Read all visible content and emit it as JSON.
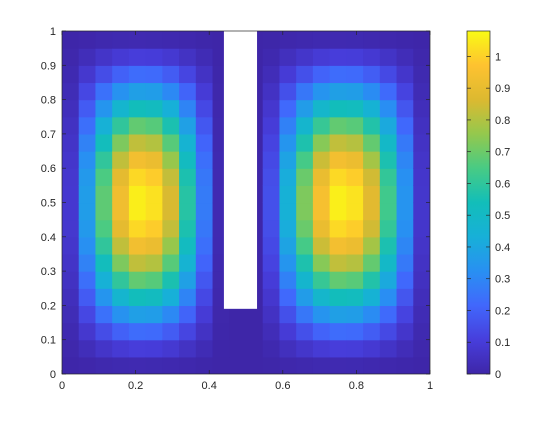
{
  "chart_data": {
    "type": "heatmap",
    "title": "",
    "xlabel": "",
    "ylabel": "",
    "xlim": [
      0,
      1
    ],
    "ylim": [
      0,
      1
    ],
    "x_ticks": [
      "0",
      "0.2",
      "0.4",
      "0.6",
      "0.8",
      "1"
    ],
    "x_tick_values": [
      0,
      0.2,
      0.4,
      0.6,
      0.8,
      1
    ],
    "y_ticks": [
      "0",
      "0.1",
      "0.2",
      "0.3",
      "0.4",
      "0.5",
      "0.6",
      "0.7",
      "0.8",
      "0.9",
      "1"
    ],
    "y_tick_values": [
      0,
      0.1,
      0.2,
      0.3,
      0.4,
      0.5,
      0.6,
      0.7,
      0.8,
      0.9,
      1
    ],
    "colormap": "parula",
    "colorbar": {
      "range": [
        0,
        1.08
      ],
      "ticks": [
        "0",
        "0.1",
        "0.2",
        "0.3",
        "0.4",
        "0.5",
        "0.6",
        "0.7",
        "0.8",
        "0.9",
        "1"
      ],
      "tick_values": [
        0,
        0.1,
        0.2,
        0.3,
        0.4,
        0.5,
        0.6,
        0.7,
        0.8,
        0.9,
        1
      ]
    },
    "field": {
      "grid_nx": 22,
      "grid_ny": 20,
      "peak_value": 1.07,
      "lobes": [
        {
          "center_x": 0.235,
          "center_y": 0.55,
          "x_range": [
            0,
            0.44
          ]
        },
        {
          "center_x": 0.735,
          "center_y": 0.55,
          "x_range": [
            0.53,
            1
          ]
        }
      ],
      "masked_region": {
        "x": [
          0.44,
          0.53
        ],
        "y": [
          0.19,
          1
        ],
        "fill": "#ffffff"
      }
    },
    "grid": false,
    "colorbar_location": "right"
  }
}
